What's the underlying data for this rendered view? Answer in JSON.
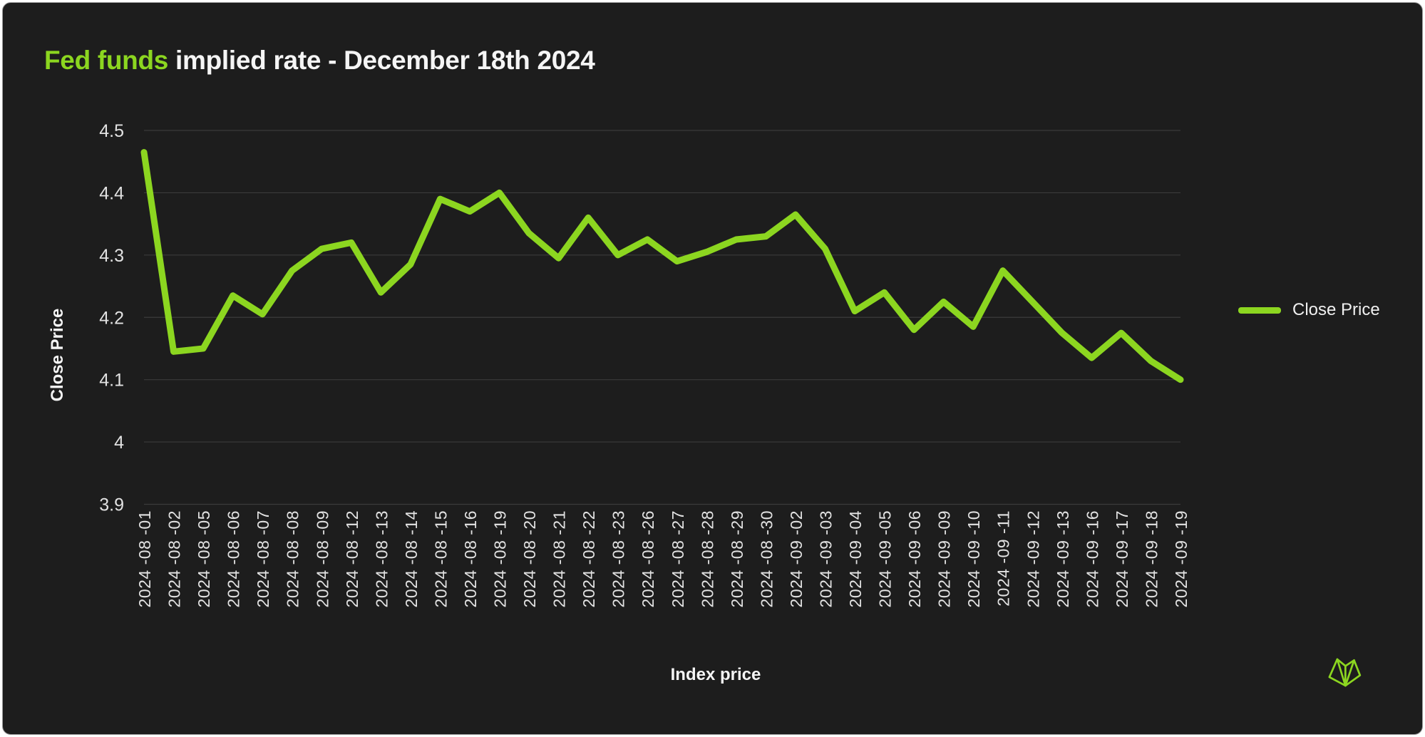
{
  "title": {
    "highlight": "Fed funds",
    "rest": " implied rate - December 18th 2024"
  },
  "colors": {
    "accent_green": "#8CD620",
    "background": "#1d1d1d",
    "gridline": "#3b3b3b",
    "tick_text": "#e2e2e2",
    "label_text": "#f5f5f5"
  },
  "legend": {
    "label": "Close Price",
    "position": "right-middle"
  },
  "logo": {
    "name": "laevitas-geometric-bat-logo"
  },
  "chart_data": {
    "type": "line",
    "title": "Fed funds implied rate - December 18th 2024",
    "xlabel": "Index price",
    "ylabel": "Close Price",
    "ylim": [
      3.9,
      4.5
    ],
    "grid": "horizontal-only",
    "legend_position": "right-middle",
    "series_name": "Close Price",
    "y_ticks": [
      "4.5",
      "4.4",
      "4.3",
      "4.2",
      "4.1",
      "4",
      "3.9"
    ],
    "x": [
      "2024 -08 -01",
      "2024 -08 -02",
      "2024 -08 -05",
      "2024 -08 -06",
      "2024 -08 -07",
      "2024 -08 -08",
      "2024 -08 -09",
      "2024 -08 -12",
      "2024 -08 -13",
      "2024 -08 -14",
      "2024 -08 -15",
      "2024 -08 -16",
      "2024 -08 -19",
      "2024 -08 -20",
      "2024 -08 -21",
      "2024 -08 -22",
      "2024 -08 -23",
      "2024 -08 -26",
      "2024 -08 -27",
      "2024 -08 -28",
      "2024 -08 -29",
      "2024 -08 -30",
      "2024 -09 -02",
      "2024 -09 -03",
      "2024 -09 -04",
      "2024 -09 -05",
      "2024 -09 -06",
      "2024 -09 -09",
      "2024 -09 -10",
      "2024 -09 -11",
      "2024 -09 -12",
      "2024 -09 -13",
      "2024 -09 -16",
      "2024 -09 -17",
      "2024 -09 -18",
      "2024 -09 -19"
    ],
    "values": [
      4.465,
      4.145,
      4.15,
      4.235,
      4.205,
      4.275,
      4.31,
      4.32,
      4.24,
      4.285,
      4.39,
      4.37,
      4.4,
      4.335,
      4.295,
      4.36,
      4.3,
      4.325,
      4.29,
      4.305,
      4.325,
      4.33,
      4.365,
      4.31,
      4.21,
      4.24,
      4.18,
      4.225,
      4.185,
      4.275,
      4.225,
      4.175,
      4.135,
      4.175,
      4.13,
      4.1
    ]
  }
}
